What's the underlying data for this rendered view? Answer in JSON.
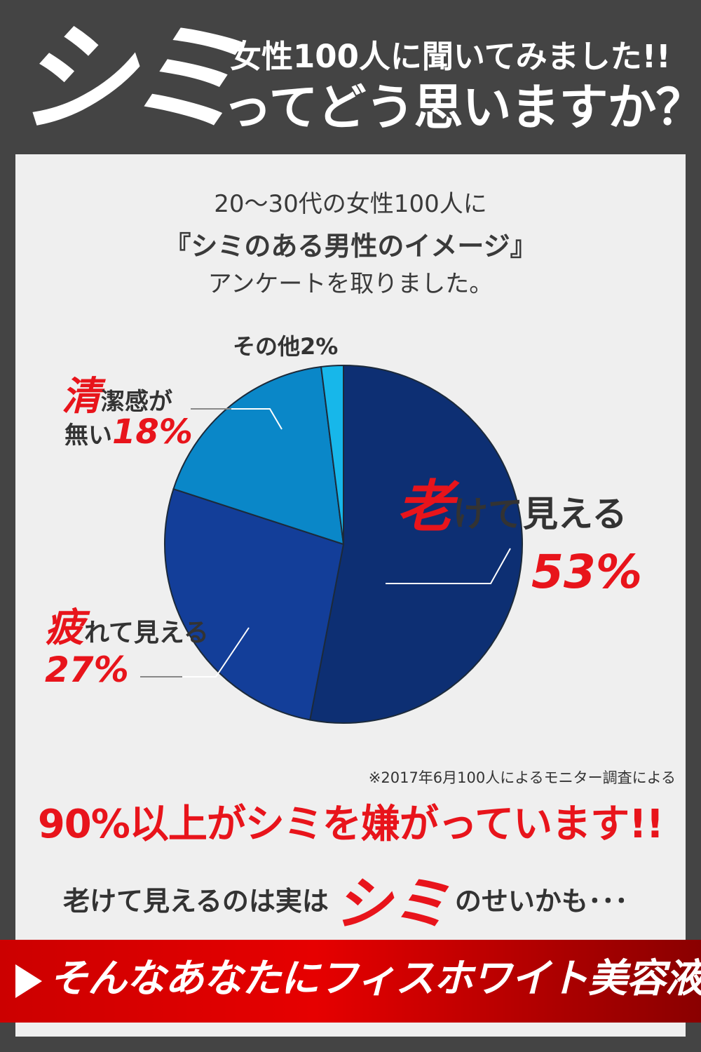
{
  "header": {
    "big_text": "シミ",
    "line1": "女性100人に聞いてみました!!",
    "line2": "ってどう思いますか？"
  },
  "survey": {
    "line1": "20～30代の女性100人に",
    "line2": "『シミのある男性のイメージ』",
    "line3": "アンケートを取りました。"
  },
  "chart_data": {
    "type": "pie",
    "slices": [
      {
        "label_first": "老",
        "label_rest": "けて見える",
        "value": 53,
        "value_text": "53%",
        "color": "#0d2f73"
      },
      {
        "label_first": "疲",
        "label_rest": "れて見える",
        "value": 27,
        "value_text": "27%",
        "color": "#133e99"
      },
      {
        "label_first": "清",
        "label_rest": "潔感が",
        "label_line2": "無い",
        "value": 18,
        "value_text": "18%",
        "color": "#0a87c8"
      },
      {
        "label_first": "",
        "label_rest": "その他2%",
        "value": 2,
        "value_text": "",
        "color": "#17b7ea"
      }
    ]
  },
  "footer": {
    "note": "※2017年6月100人によるモニター調査による",
    "headline": "90%以上がシミを嫌がっています!!",
    "sub_before": "老けて見えるのは実は",
    "sub_big": "シミ",
    "sub_after": "のせいかも･･･",
    "banner": "そんなあなたにフィスホワイト美容液!"
  }
}
